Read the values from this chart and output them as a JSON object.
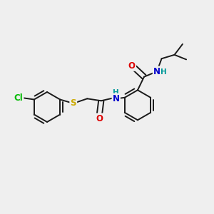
{
  "background_color": "#efefef",
  "bond_color": "#1a1a1a",
  "atom_colors": {
    "Cl": "#00bb00",
    "S": "#ccaa00",
    "O": "#dd0000",
    "N": "#0000cc",
    "H": "#009999"
  },
  "bond_lw": 1.4,
  "font_size": 8.5,
  "figsize": [
    3.0,
    3.0
  ],
  "dpi": 100
}
